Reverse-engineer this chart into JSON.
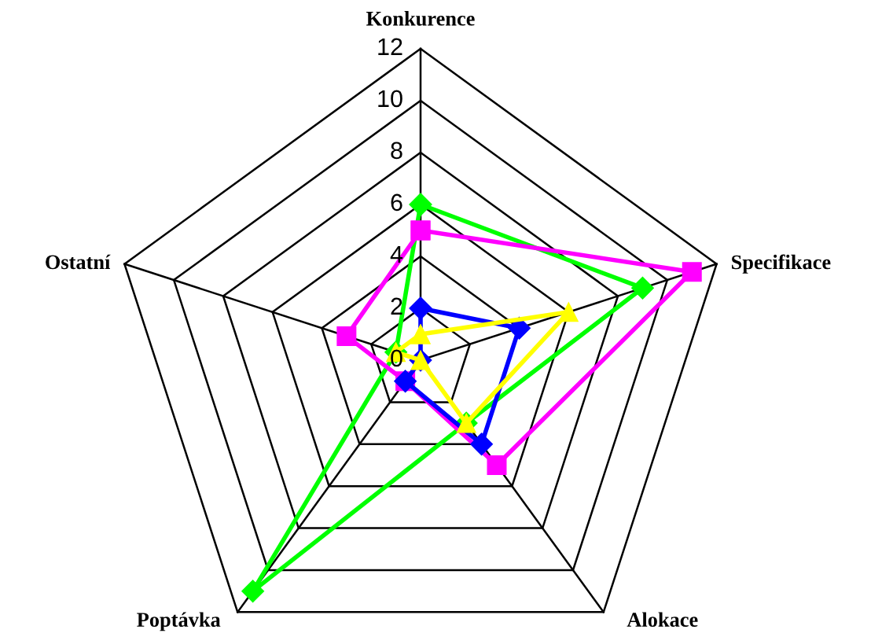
{
  "chart_data": {
    "type": "radar",
    "categories": [
      "Konkurence",
      "Specifikace",
      "Alokace",
      "Poptávka",
      "Ostatní"
    ],
    "ylim": [
      0,
      12
    ],
    "yticks": [
      0,
      2,
      4,
      6,
      8,
      10,
      12
    ],
    "grid": true,
    "line_style": "solid",
    "series": [
      {
        "color": "#00ff00",
        "marker": "diamond",
        "values": [
          6,
          9,
          3,
          11,
          1
        ]
      },
      {
        "color": "#ff00ff",
        "marker": "square",
        "values": [
          5,
          11,
          5,
          1,
          3
        ]
      },
      {
        "color": "#0000ff",
        "marker": "diamond",
        "values": [
          2,
          4,
          4,
          1,
          0
        ]
      },
      {
        "color": "#ffff00",
        "marker": "triangle",
        "values": [
          1,
          6,
          3,
          0,
          1
        ]
      }
    ]
  }
}
